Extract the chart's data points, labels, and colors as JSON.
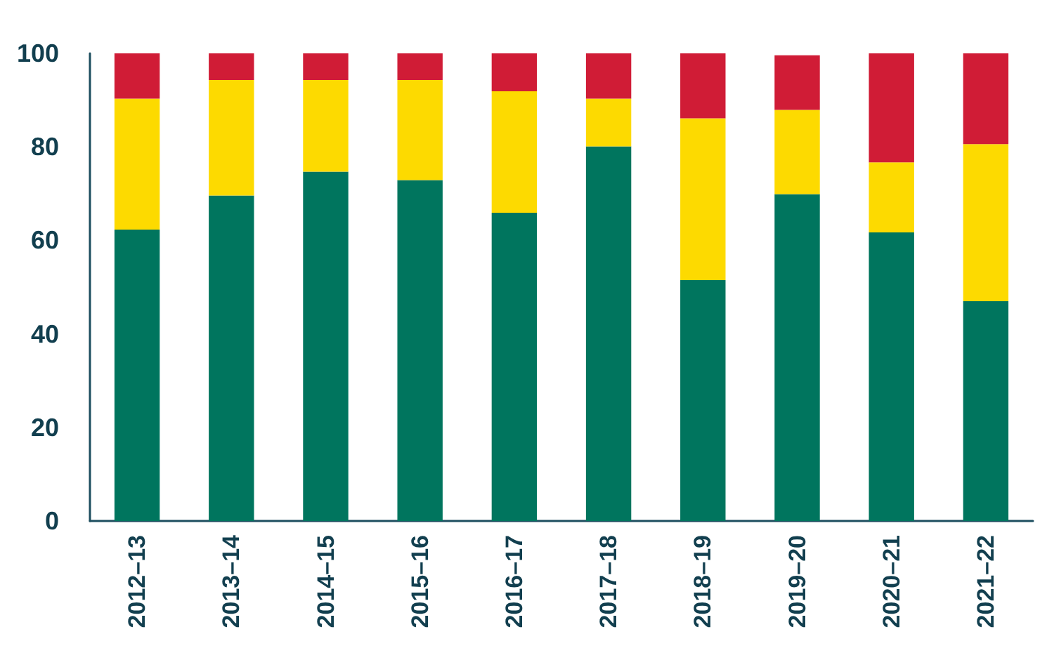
{
  "chart_data": {
    "type": "bar",
    "stacked": true,
    "categories": [
      "2012–13",
      "2013–14",
      "2014–15",
      "2015–16",
      "2016–17",
      "2017–18",
      "2018–19",
      "2019–20",
      "2020–21",
      "2021–22"
    ],
    "series": [
      {
        "color": "#00755e",
        "values": [
          62.3,
          69.6,
          74.7,
          72.9,
          65.9,
          80.1,
          51.5,
          69.9,
          61.7,
          47.0
        ]
      },
      {
        "color": "#fdda00",
        "values": [
          28.0,
          24.7,
          19.6,
          21.4,
          26.0,
          10.2,
          34.6,
          18.0,
          15.0,
          33.6
        ]
      },
      {
        "color": "#d01c36",
        "values": [
          9.7,
          5.7,
          5.7,
          5.7,
          8.1,
          9.7,
          13.9,
          11.7,
          23.3,
          19.4
        ]
      }
    ],
    "ylim": [
      0,
      100
    ],
    "yticks": [
      0,
      20,
      40,
      60,
      80,
      100
    ],
    "grid": false
  }
}
